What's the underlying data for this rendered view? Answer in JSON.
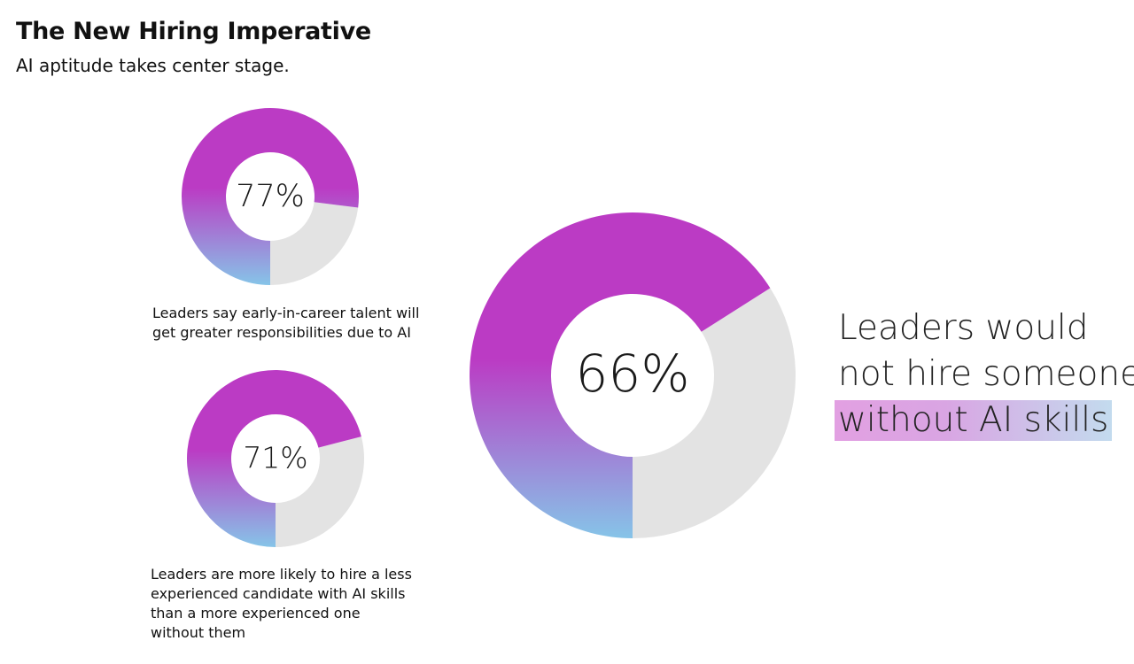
{
  "header": {
    "title": "The New Hiring Imperative",
    "subtitle": "AI aptitude takes center stage."
  },
  "colors": {
    "gradient_top": "#bb3bc4",
    "gradient_bottom": "#86c4e8",
    "track": "#e3e3e3",
    "highlight_left": "#e2a0e2",
    "highlight_right": "#c3dbee"
  },
  "chart_data": [
    {
      "type": "pie",
      "values": [
        77,
        23
      ],
      "data_label": "77%",
      "caption": "Leaders say early-in-career talent will get greater responsibilities due to AI",
      "caption_lines": [
        "Leaders say early-in-career talent will",
        "get greater responsibilities due to AI"
      ]
    },
    {
      "type": "pie",
      "values": [
        71,
        29
      ],
      "data_label": "71%",
      "caption": "Leaders are more likely to hire a less experienced candidate with AI skills than a more experienced one without them",
      "caption_lines": [
        "Leaders are more likely to hire a less",
        "experienced candidate with AI skills",
        "than a more experienced one",
        "without them"
      ]
    },
    {
      "type": "pie",
      "values": [
        66,
        34
      ],
      "data_label": "66%",
      "caption": "Leaders would not hire someone without AI skills",
      "caption_lines": [
        "Leaders would",
        "not hire someone",
        "without AI skills"
      ]
    }
  ]
}
